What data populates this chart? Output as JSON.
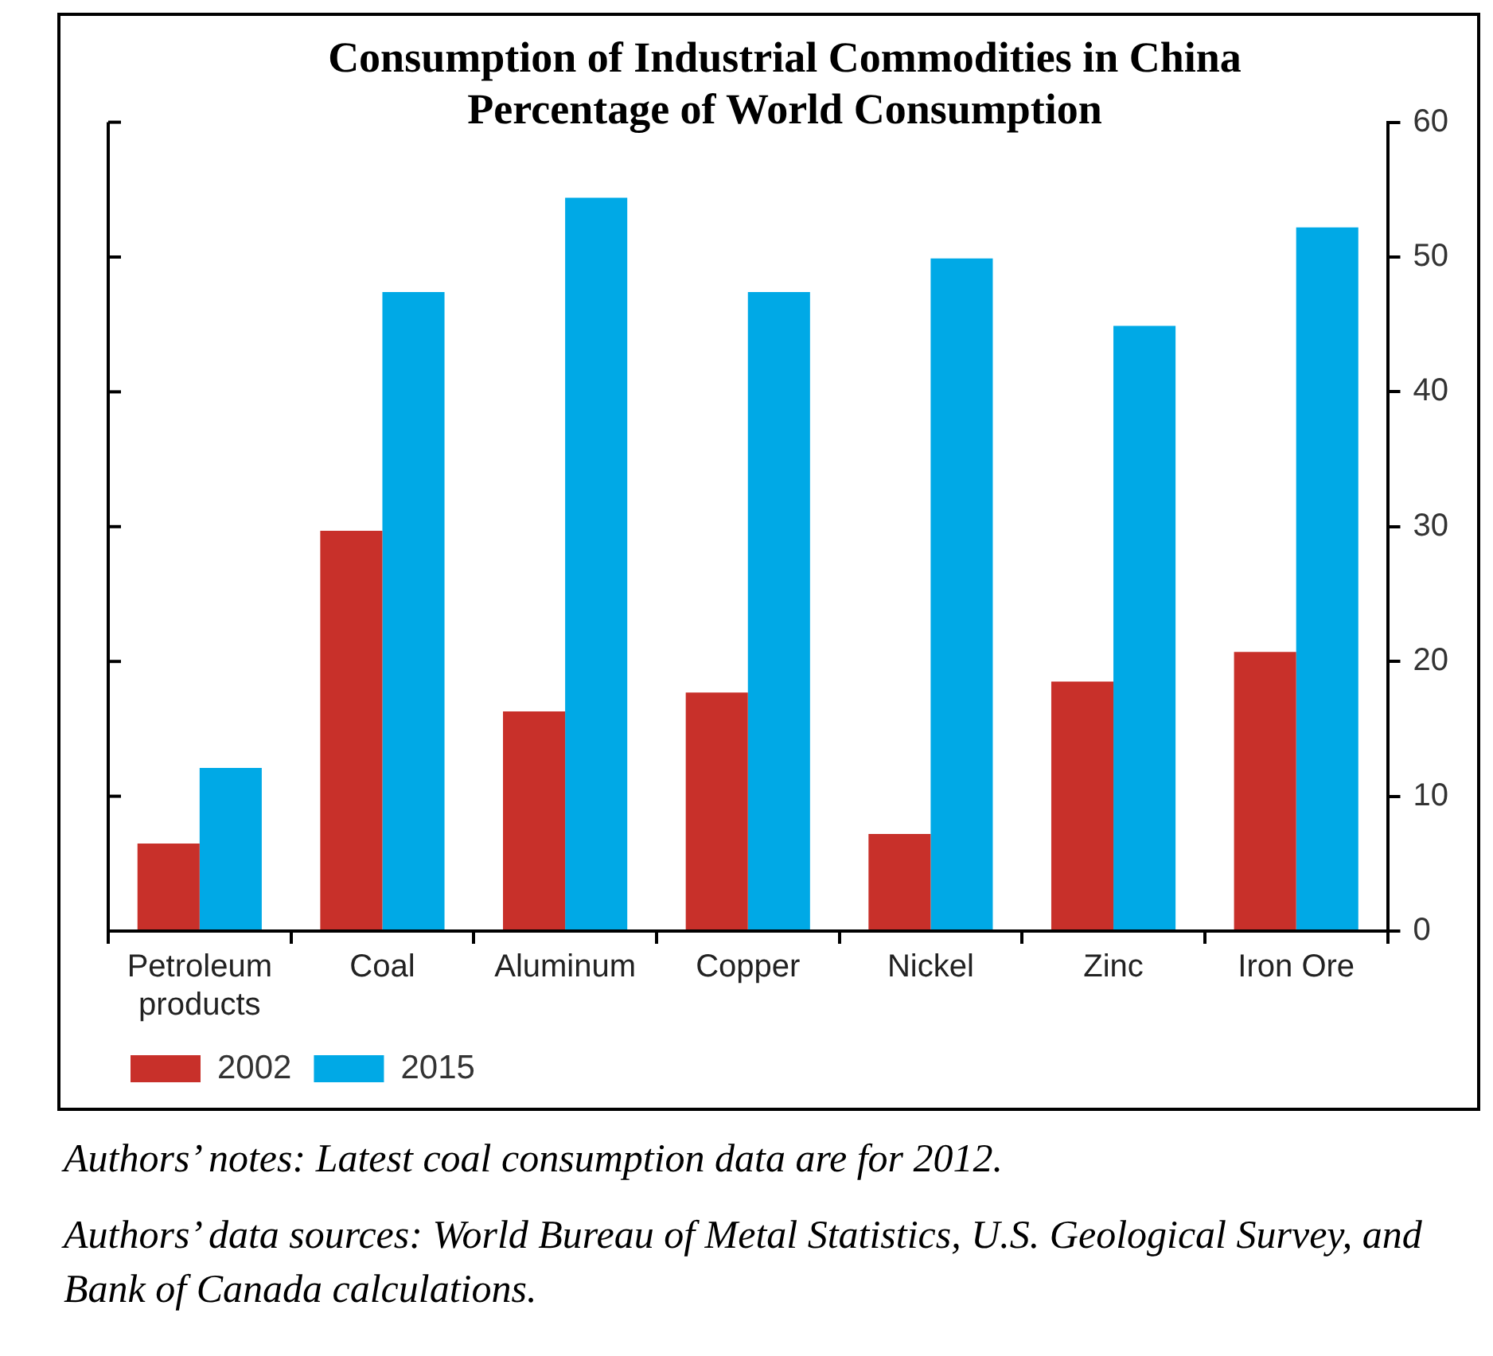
{
  "chart_data": {
    "type": "bar",
    "title": "Consumption of Industrial Commodities in China\nPercentage of World Consumption",
    "categories": [
      "Petroleum products",
      "Coal",
      "Aluminum",
      "Copper",
      "Nickel",
      "Zinc",
      "Iron Ore"
    ],
    "series": [
      {
        "name": "2002",
        "color": "#c8302a",
        "values": [
          6.5,
          29.7,
          16.3,
          17.7,
          7.2,
          18.5,
          20.7
        ]
      },
      {
        "name": "2015",
        "color": "#00a9e6",
        "values": [
          12.1,
          47.4,
          54.4,
          47.4,
          49.9,
          44.9,
          52.2
        ]
      }
    ],
    "ylim": [
      0,
      60
    ],
    "yticks": [
      0,
      10,
      20,
      30,
      40,
      50,
      60
    ],
    "grid": false,
    "legend": "bottom left",
    "annotations": [
      "Authors’ notes:  Latest coal consumption data are for 2012.",
      "Authors’ data sources:  World Bureau of Metal Statistics, U.S. Geological Survey, and Bank of Canada calculations."
    ]
  }
}
